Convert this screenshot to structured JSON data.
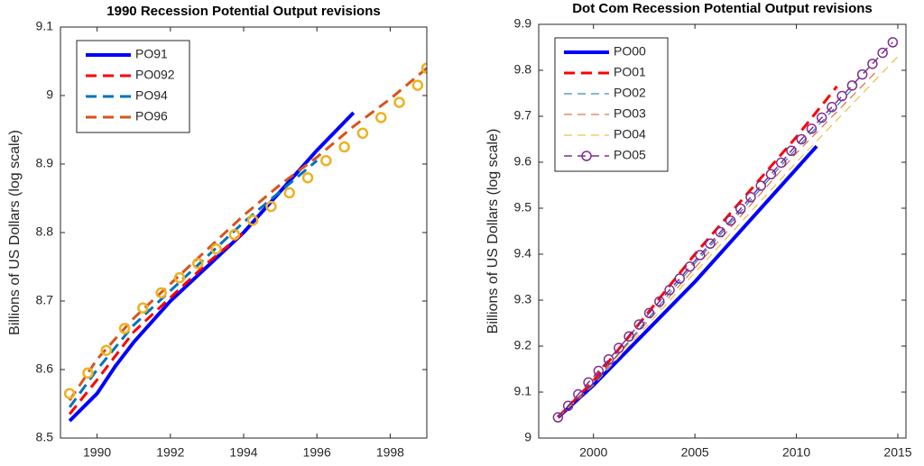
{
  "chart_data": [
    {
      "type": "line",
      "title": "1990 Recession Potential Output revisions",
      "ylabel": "Billions of US Dollars (log scale)",
      "xlim": [
        1989,
        1999
      ],
      "ylim": [
        8.5,
        9.1
      ],
      "xticks": [
        1990,
        1992,
        1994,
        1996,
        1998
      ],
      "yticks": [
        8.5,
        8.6,
        8.7,
        8.8,
        8.9,
        9,
        9.1
      ],
      "legend": "upper left",
      "series": [
        {
          "name": "PO91",
          "color": "#0000ff",
          "linestyle": "-",
          "linewidth": 4,
          "x": [
            1989.25,
            1990,
            1990.5,
            1991,
            1992,
            1993,
            1994,
            1995,
            1996,
            1997
          ],
          "values": [
            8.525,
            8.565,
            8.605,
            8.64,
            8.7,
            8.75,
            8.8,
            8.86,
            8.92,
            8.975
          ]
        },
        {
          "name": "PO092",
          "color": "#ff0000",
          "linestyle": "--",
          "linewidth": 3,
          "x": [
            1989.25,
            1990,
            1991,
            1992,
            1993,
            1994
          ],
          "values": [
            8.535,
            8.585,
            8.655,
            8.705,
            8.755,
            8.8
          ]
        },
        {
          "name": "PO94",
          "color": "#0072bd",
          "linestyle": "--",
          "linewidth": 3,
          "x": [
            1989.25,
            1990,
            1991,
            1992,
            1993,
            1994,
            1995,
            1996
          ],
          "values": [
            8.545,
            8.6,
            8.665,
            8.715,
            8.765,
            8.815,
            8.86,
            8.905
          ]
        },
        {
          "name": "PO96",
          "color": "#d95319",
          "linestyle": "--",
          "linewidth": 3,
          "x": [
            1989.25,
            1990,
            1991,
            1992,
            1993,
            1994,
            1995,
            1996,
            1997,
            1998,
            1999
          ],
          "values": [
            8.555,
            8.615,
            8.675,
            8.725,
            8.775,
            8.825,
            8.87,
            8.91,
            8.955,
            8.995,
            9.04
          ]
        },
        {
          "color": "#edb120",
          "linestyle": "none",
          "linewidth": 3,
          "marker": "o",
          "x": [
            1989.25,
            1989.75,
            1990.25,
            1990.75,
            1991.25,
            1991.75,
            1992.25,
            1992.75,
            1993.25,
            1993.75,
            1994.25,
            1994.75,
            1995.25,
            1995.75,
            1996.25,
            1996.75,
            1997.25,
            1997.75,
            1998.25,
            1998.75,
            1999
          ],
          "values": [
            8.565,
            8.595,
            8.628,
            8.66,
            8.69,
            8.712,
            8.734,
            8.755,
            8.776,
            8.797,
            8.818,
            8.838,
            8.858,
            8.88,
            8.905,
            8.925,
            8.945,
            8.968,
            8.99,
            9.015,
            9.04
          ]
        }
      ]
    },
    {
      "type": "line",
      "title": "Dot Com Recession Potential Output revisions",
      "ylabel": "Billions of US Dollars (log scale)",
      "xlim": [
        1997.3,
        2015.4
      ],
      "ylim": [
        9,
        9.9
      ],
      "xticks": [
        2000,
        2005,
        2010,
        2015
      ],
      "yticks": [
        9,
        9.1,
        9.2,
        9.3,
        9.4,
        9.5,
        9.6,
        9.7,
        9.8,
        9.9
      ],
      "legend": "upper left",
      "series": [
        {
          "name": "PO00",
          "color": "#0000ff",
          "linestyle": "-",
          "linewidth": 4,
          "x": [
            1998.25,
            2000,
            2005,
            2011
          ],
          "values": [
            9.045,
            9.115,
            9.34,
            9.635
          ]
        },
        {
          "name": "PO01",
          "color": "#ff0000",
          "linestyle": "--",
          "linewidth": 3,
          "x": [
            1998.25,
            2000,
            2005,
            2010,
            2012
          ],
          "values": [
            9.045,
            9.125,
            9.4,
            9.655,
            9.765
          ]
        },
        {
          "name": "PO02",
          "color": "#0072bd",
          "linestyle": "--",
          "linewidth": 1,
          "x": [
            1998.25,
            2000,
            2005,
            2010,
            2013
          ],
          "values": [
            9.045,
            9.12,
            9.38,
            9.63,
            9.77
          ]
        },
        {
          "name": "PO03",
          "color": "#d95319",
          "linestyle": "--",
          "linewidth": 1,
          "x": [
            1998.25,
            2000,
            2005,
            2010,
            2014
          ],
          "values": [
            9.045,
            9.12,
            9.37,
            9.62,
            9.8
          ]
        },
        {
          "name": "PO04",
          "color": "#edb120",
          "linestyle": "--",
          "linewidth": 1,
          "x": [
            1998.25,
            2000,
            2005,
            2010,
            2015
          ],
          "values": [
            9.045,
            9.115,
            9.36,
            9.6,
            9.83
          ]
        },
        {
          "name": "PO05",
          "color": "#7e2f8e",
          "linestyle": "--",
          "linewidth": 1.5,
          "marker": "o",
          "x": [
            1998.25,
            1998.75,
            1999.25,
            1999.75,
            2000.25,
            2000.75,
            2001.25,
            2001.75,
            2002.25,
            2002.75,
            2003.25,
            2003.75,
            2004.25,
            2004.75,
            2005.25,
            2005.75,
            2006.25,
            2006.75,
            2007.25,
            2007.75,
            2008.25,
            2008.75,
            2009.25,
            2009.75,
            2010.25,
            2010.75,
            2011.25,
            2011.75,
            2012.25,
            2012.75,
            2013.25,
            2013.75,
            2014.25,
            2014.75
          ],
          "values": [
            9.045,
            9.07,
            9.095,
            9.121,
            9.146,
            9.171,
            9.196,
            9.221,
            9.247,
            9.272,
            9.297,
            9.322,
            9.347,
            9.373,
            9.398,
            9.423,
            9.448,
            9.473,
            9.499,
            9.524,
            9.549,
            9.574,
            9.599,
            9.625,
            9.65,
            9.673,
            9.697,
            9.72,
            9.744,
            9.767,
            9.791,
            9.814,
            9.838,
            9.861
          ]
        }
      ]
    }
  ]
}
